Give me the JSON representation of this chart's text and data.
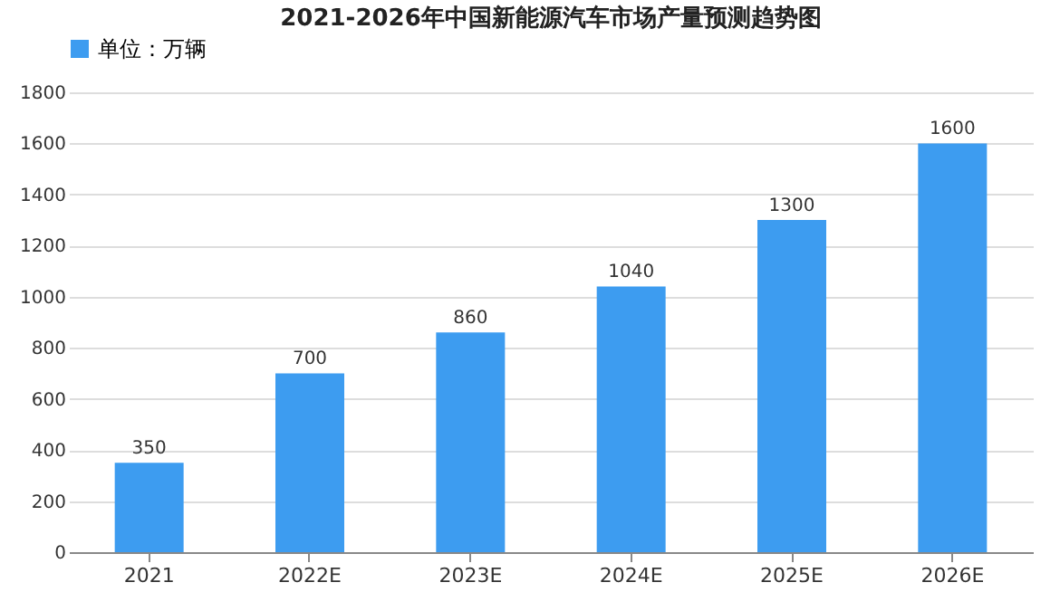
{
  "chart_data": {
    "type": "bar",
    "title": "2021-2026年中国新能源汽车市场产量预测趋势图",
    "categories": [
      "2021",
      "2022E",
      "2023E",
      "2024E",
      "2025E",
      "2026E"
    ],
    "series": [
      {
        "name": "单位：万辆",
        "color": "#3d9cf0",
        "values": [
          350,
          700,
          860,
          1040,
          1300,
          1600
        ]
      }
    ],
    "ylim": [
      0,
      1800
    ],
    "yticks": [
      0,
      200,
      400,
      600,
      800,
      1000,
      1200,
      1400,
      1600,
      1800
    ],
    "grid": "y",
    "legend": "top",
    "data_labels": true
  }
}
